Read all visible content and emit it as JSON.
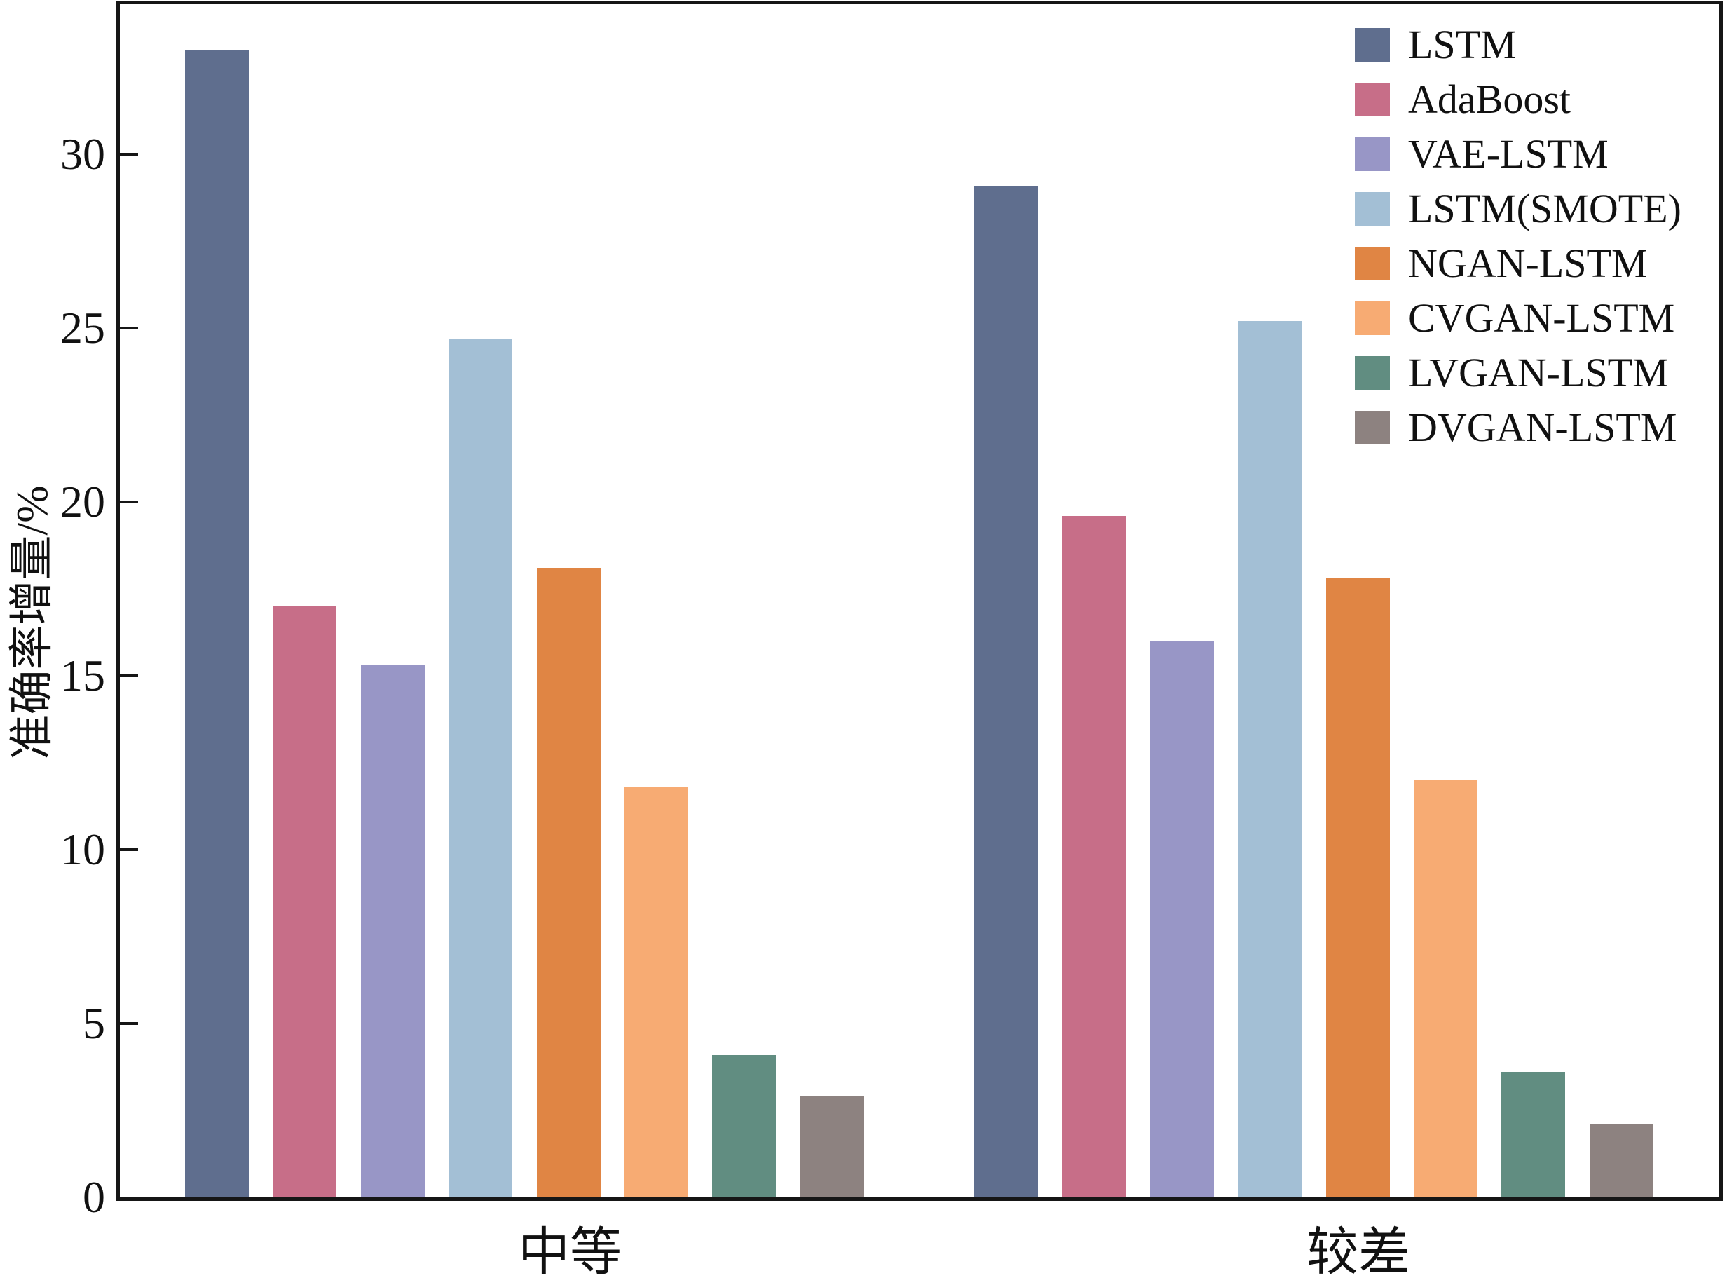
{
  "chart_data": {
    "type": "bar",
    "title": "",
    "xlabel": "",
    "ylabel": "准确率增量/%",
    "categories": [
      "中等",
      "较差"
    ],
    "series": [
      {
        "name": "LSTM",
        "color": "#5f6e8e",
        "values": [
          33.0,
          29.1
        ]
      },
      {
        "name": "AdaBoost",
        "color": "#c76e88",
        "values": [
          17.0,
          19.6
        ]
      },
      {
        "name": "VAE-LSTM",
        "color": "#9896c6",
        "values": [
          15.3,
          16.0
        ]
      },
      {
        "name": "LSTM(SMOTE)",
        "color": "#a3bfd5",
        "values": [
          24.7,
          25.2
        ]
      },
      {
        "name": "NGAN-LSTM",
        "color": "#e08544",
        "values": [
          18.1,
          17.8
        ]
      },
      {
        "name": "CVGAN-LSTM",
        "color": "#f7ab73",
        "values": [
          11.8,
          12.0
        ]
      },
      {
        "name": "LVGAN-LSTM",
        "color": "#618d81",
        "values": [
          4.1,
          3.6
        ]
      },
      {
        "name": "DVGAN-LSTM",
        "color": "#8d8280",
        "values": [
          2.9,
          2.1
        ]
      }
    ],
    "ylim": [
      0,
      34.4
    ],
    "yticks": [
      0,
      5,
      10,
      15,
      20,
      25,
      30
    ],
    "grid": false,
    "legend_position": "top-right",
    "spine_color": "#161616"
  }
}
